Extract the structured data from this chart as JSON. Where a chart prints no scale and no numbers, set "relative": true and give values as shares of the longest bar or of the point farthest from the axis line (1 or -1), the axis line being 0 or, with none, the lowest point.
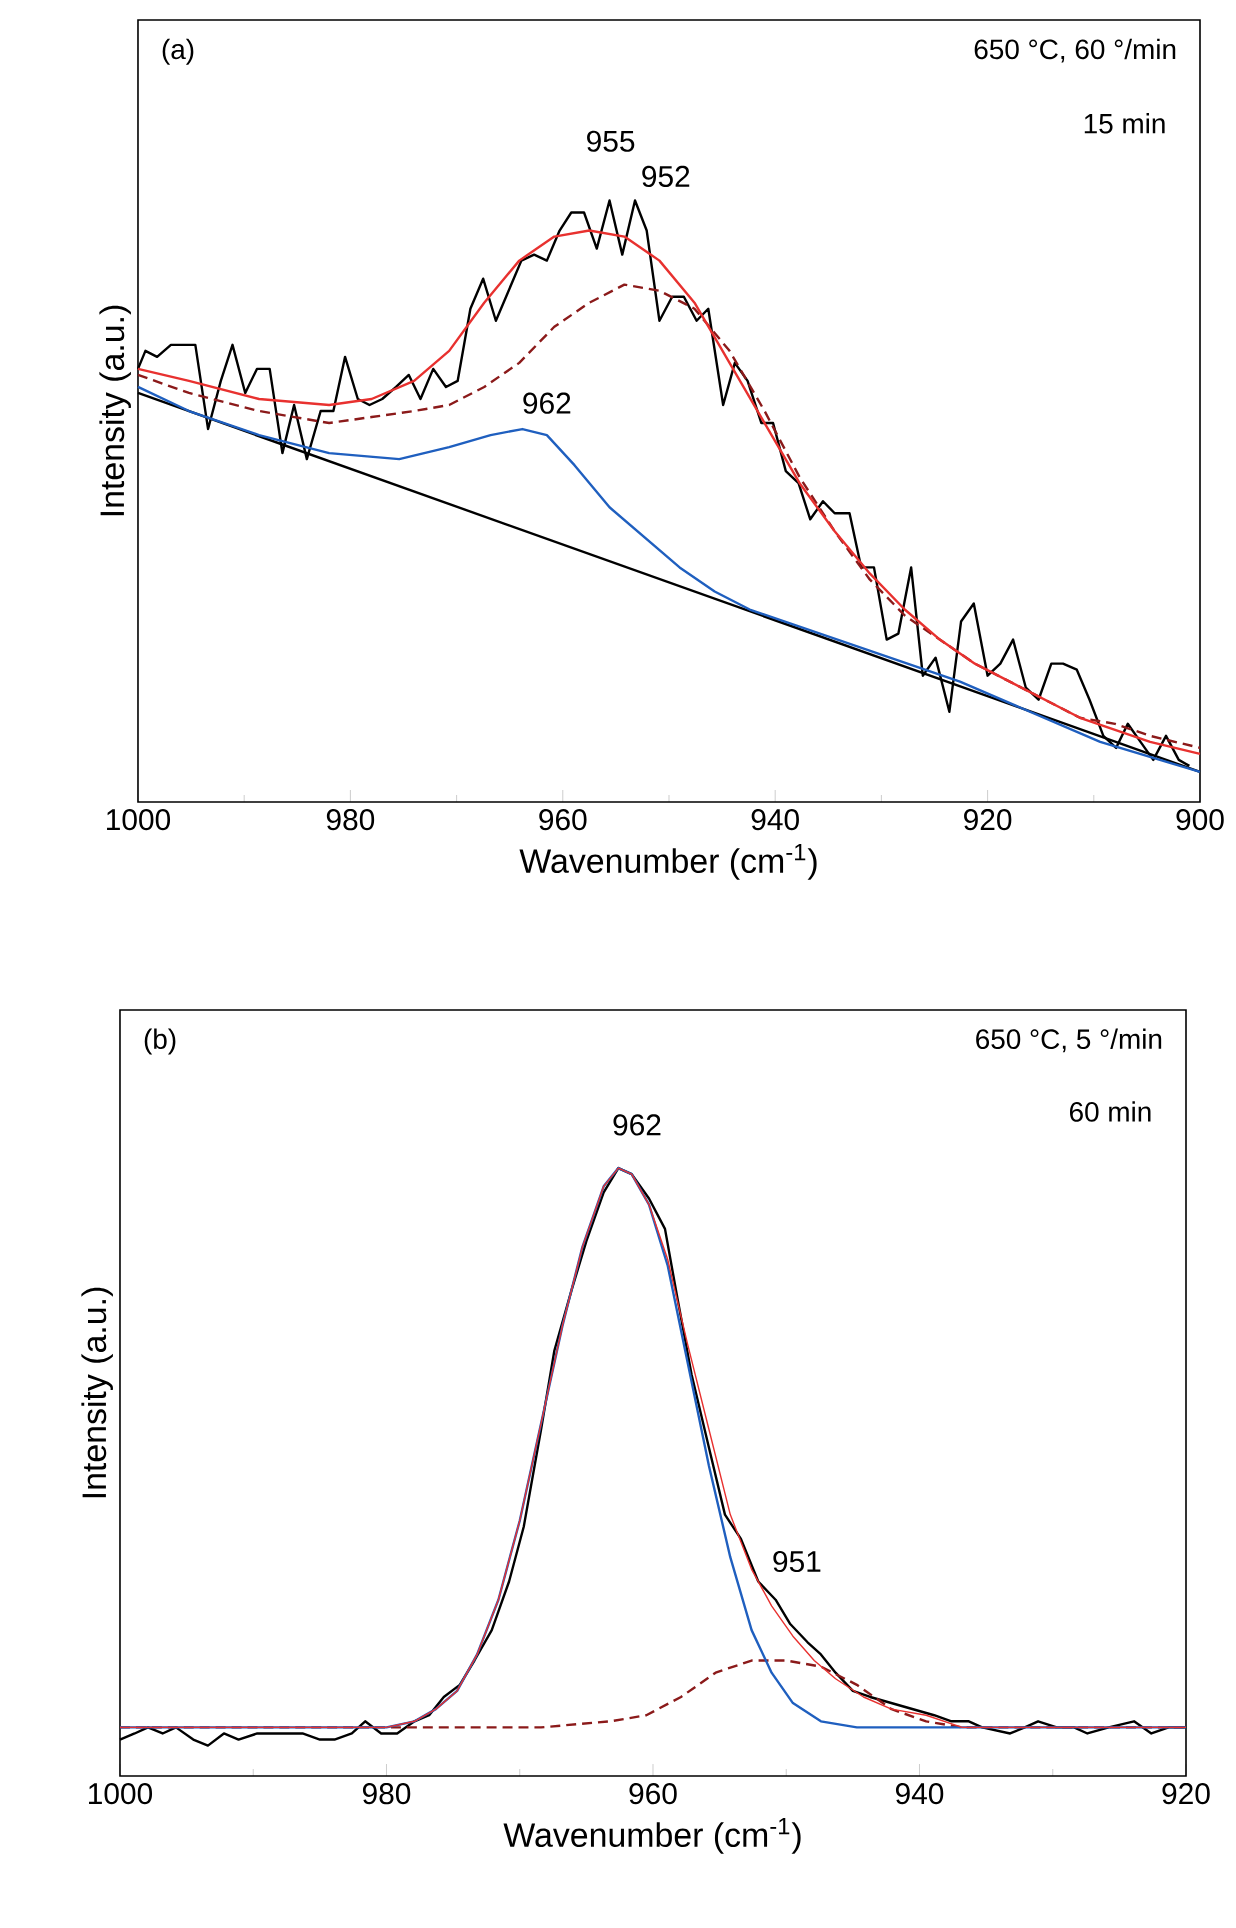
{
  "chart_data": [
    {
      "type": "line",
      "relative": true,
      "xlabel": "Wavenumber (cm$^{-1}$)",
      "ylabel": "Intensity (a.u.)",
      "xlim": [
        1000,
        900
      ],
      "xticks": [
        1000,
        980,
        960,
        940,
        920,
        900
      ],
      "tick_labels": "x",
      "annotations": [
        "(a)",
        "650 °C, 60 °/min",
        "15 min",
        "955",
        "952",
        "962"
      ],
      "series": [
        {
          "color": "#000000",
          "line_style": "solid",
          "x": [
            1000.0,
            999.3,
            998.2,
            996.9,
            995.7,
            994.6,
            993.4,
            992.2,
            991.1,
            989.9,
            988.8,
            987.6,
            986.4,
            985.3,
            984.1,
            982.8,
            981.6,
            980.5,
            979.3,
            978.2,
            977.0,
            975.7,
            974.5,
            973.4,
            972.2,
            971.0,
            969.9,
            968.7,
            967.5,
            966.3,
            965.1,
            963.9,
            962.7,
            961.5,
            960.3,
            959.2,
            958.0,
            956.8,
            955.6,
            954.4,
            953.2,
            952.1,
            950.9,
            949.7,
            948.6,
            947.4,
            946.3,
            944.9,
            943.8,
            942.6,
            941.3,
            940.2,
            939.0,
            937.8,
            936.7,
            935.5,
            934.4,
            933.0,
            931.9,
            930.7,
            929.5,
            928.4,
            927.2,
            926.1,
            924.9,
            923.6,
            922.5,
            921.3,
            920.0,
            918.8,
            917.6,
            916.4,
            915.2,
            914.0,
            912.9,
            911.6,
            910.4,
            909.1,
            907.9,
            906.8,
            905.6,
            904.4,
            903.2,
            902.0,
            901.0
          ],
          "values": [
            0.72,
            0.75,
            0.74,
            0.76,
            0.76,
            0.76,
            0.62,
            0.7,
            0.76,
            0.68,
            0.72,
            0.72,
            0.58,
            0.66,
            0.57,
            0.65,
            0.65,
            0.74,
            0.67,
            0.66,
            0.67,
            0.69,
            0.71,
            0.67,
            0.72,
            0.69,
            0.7,
            0.82,
            0.87,
            0.8,
            0.85,
            0.9,
            0.91,
            0.9,
            0.95,
            0.98,
            0.98,
            0.92,
            1.0,
            0.91,
            1.0,
            0.95,
            0.8,
            0.84,
            0.84,
            0.8,
            0.82,
            0.66,
            0.73,
            0.7,
            0.63,
            0.63,
            0.55,
            0.53,
            0.47,
            0.5,
            0.48,
            0.48,
            0.39,
            0.39,
            0.27,
            0.28,
            0.39,
            0.21,
            0.24,
            0.15,
            0.3,
            0.33,
            0.21,
            0.23,
            0.27,
            0.19,
            0.17,
            0.23,
            0.23,
            0.22,
            0.17,
            0.11,
            0.09,
            0.13,
            0.1,
            0.07,
            0.11,
            0.07,
            0.06
          ]
        },
        {
          "color": "#000000",
          "line_style": "solid",
          "x": [
            1000,
            900
          ],
          "values": [
            0.68,
            0.05
          ]
        },
        {
          "color": "#1f5fbf",
          "line_style": "solid",
          "x": [
            1000,
            995.2,
            988.6,
            982.0,
            975.4,
            970.7,
            966.8,
            963.8,
            961.5,
            958.9,
            955.6,
            952.3,
            949.0,
            945.7,
            942.4,
            939.1,
            935.8,
            929.2,
            922.6,
            916.0,
            909.4,
            900.0
          ],
          "values": [
            0.69,
            0.65,
            0.61,
            0.58,
            0.57,
            0.59,
            0.61,
            0.62,
            0.61,
            0.56,
            0.49,
            0.44,
            0.39,
            0.35,
            0.32,
            0.3,
            0.28,
            0.24,
            0.2,
            0.15,
            0.1,
            0.05
          ]
        },
        {
          "color": "#8b1a1a",
          "line_style": "dashed",
          "x": [
            1000,
            995.2,
            988.6,
            982.0,
            978.0,
            974.0,
            970.7,
            967.4,
            964.1,
            960.8,
            957.5,
            954.2,
            950.9,
            947.6,
            944.3,
            941.0,
            937.7,
            934.4,
            931.1,
            927.8,
            924.5,
            921.2,
            917.9,
            914.6,
            911.3,
            908.0,
            904.7,
            900.0
          ],
          "values": [
            0.71,
            0.68,
            0.65,
            0.63,
            0.64,
            0.65,
            0.66,
            0.69,
            0.73,
            0.79,
            0.83,
            0.86,
            0.85,
            0.82,
            0.75,
            0.65,
            0.54,
            0.45,
            0.37,
            0.31,
            0.27,
            0.23,
            0.2,
            0.17,
            0.14,
            0.13,
            0.11,
            0.09
          ]
        },
        {
          "color": "#e8312f",
          "line_style": "solid",
          "x": [
            1000,
            995.2,
            988.6,
            982.0,
            978.0,
            974.0,
            970.7,
            967.4,
            964.1,
            960.8,
            957.5,
            954.2,
            950.9,
            947.6,
            944.3,
            941.0,
            937.7,
            934.4,
            931.1,
            927.8,
            924.5,
            921.2,
            917.9,
            914.6,
            911.3,
            908.0,
            904.7,
            900.0
          ],
          "values": [
            0.72,
            0.7,
            0.67,
            0.66,
            0.67,
            0.7,
            0.75,
            0.83,
            0.9,
            0.94,
            0.95,
            0.94,
            0.9,
            0.83,
            0.73,
            0.63,
            0.53,
            0.45,
            0.38,
            0.32,
            0.27,
            0.23,
            0.2,
            0.17,
            0.14,
            0.12,
            0.1,
            0.08
          ]
        }
      ]
    },
    {
      "type": "line",
      "relative": true,
      "xlabel": "Wavenumber (cm$^{-1}$)",
      "ylabel": "Intensity (a.u.)",
      "xlim": [
        1000,
        920
      ],
      "xticks": [
        1000,
        980,
        960,
        940,
        920
      ],
      "tick_labels": "x",
      "annotations": [
        "(b)",
        "650 °C, 5 °/min",
        "60 min",
        "962",
        "951"
      ],
      "series": [
        {
          "color": "#000000",
          "line_style": "solid",
          "x": [
            1000,
            998.9,
            997.9,
            996.8,
            995.8,
            994.5,
            993.4,
            992.2,
            991.1,
            989.7,
            987.9,
            986.3,
            985.0,
            983.9,
            982.6,
            981.6,
            980.4,
            979.2,
            977.9,
            976.8,
            975.7,
            974.5,
            973.4,
            972.1,
            970.8,
            969.7,
            968.4,
            967.4,
            966.1,
            965.0,
            963.7,
            962.6,
            961.6,
            960.3,
            959.1,
            958.2,
            957.1,
            955.8,
            954.6,
            953.4,
            952.1,
            950.8,
            949.7,
            948.4,
            947.4,
            946.3,
            945.0,
            943.7,
            942.1,
            940.5,
            938.9,
            937.6,
            936.3,
            935.3,
            933.2,
            932.1,
            931.1,
            929.7,
            928.4,
            927.4,
            925.8,
            923.9,
            922.6,
            921.3,
            920.0
          ],
          "values": [
            0.06,
            0.07,
            0.08,
            0.07,
            0.08,
            0.06,
            0.05,
            0.07,
            0.06,
            0.07,
            0.07,
            0.07,
            0.06,
            0.06,
            0.07,
            0.09,
            0.07,
            0.07,
            0.09,
            0.1,
            0.13,
            0.15,
            0.19,
            0.24,
            0.32,
            0.41,
            0.57,
            0.7,
            0.8,
            0.88,
            0.96,
            1.0,
            0.99,
            0.95,
            0.9,
            0.79,
            0.66,
            0.54,
            0.43,
            0.39,
            0.32,
            0.29,
            0.25,
            0.22,
            0.2,
            0.17,
            0.14,
            0.13,
            0.12,
            0.11,
            0.1,
            0.09,
            0.09,
            0.08,
            0.07,
            0.08,
            0.09,
            0.08,
            0.08,
            0.07,
            0.08,
            0.09,
            0.07,
            0.08,
            0.08
          ]
        },
        {
          "color": "#8b1a1a",
          "line_style": "dashed",
          "x": [
            1000,
            968.4,
            963.2,
            960.5,
            957.9,
            955.3,
            952.6,
            950.0,
            947.4,
            944.7,
            942.1,
            939.5,
            936.8,
            920
          ],
          "values": [
            0.08,
            0.08,
            0.09,
            0.1,
            0.13,
            0.17,
            0.19,
            0.19,
            0.18,
            0.15,
            0.11,
            0.09,
            0.08,
            0.08
          ]
        },
        {
          "color": "#1f5fbf",
          "line_style": "solid",
          "x": [
            1000,
            980.0,
            977.9,
            976.3,
            974.7,
            973.2,
            971.6,
            970.0,
            968.4,
            966.8,
            965.3,
            963.7,
            962.6,
            961.6,
            960.3,
            958.9,
            957.4,
            955.8,
            954.2,
            952.6,
            951.1,
            949.5,
            947.4,
            944.7,
            920
          ],
          "values": [
            0.08,
            0.08,
            0.09,
            0.11,
            0.14,
            0.2,
            0.29,
            0.42,
            0.58,
            0.74,
            0.87,
            0.97,
            1.0,
            0.99,
            0.94,
            0.84,
            0.68,
            0.51,
            0.36,
            0.24,
            0.17,
            0.12,
            0.09,
            0.08,
            0.08
          ]
        },
        {
          "color": "#e8312f",
          "line_style": "solid",
          "x": [
            1000,
            980.0,
            977.9,
            976.3,
            974.7,
            973.2,
            971.6,
            970.0,
            968.4,
            966.8,
            965.3,
            963.7,
            962.6,
            961.6,
            960.3,
            958.9,
            957.4,
            955.8,
            954.2,
            952.6,
            951.1,
            949.5,
            947.9,
            946.3,
            944.2,
            942.1,
            939.5,
            936.8,
            931.6,
            920.0
          ],
          "values": [
            0.08,
            0.08,
            0.09,
            0.11,
            0.14,
            0.2,
            0.29,
            0.42,
            0.58,
            0.74,
            0.87,
            0.97,
            1.0,
            0.99,
            0.94,
            0.85,
            0.71,
            0.57,
            0.43,
            0.34,
            0.28,
            0.23,
            0.19,
            0.16,
            0.13,
            0.11,
            0.1,
            0.08,
            0.08,
            0.08
          ]
        }
      ]
    }
  ]
}
